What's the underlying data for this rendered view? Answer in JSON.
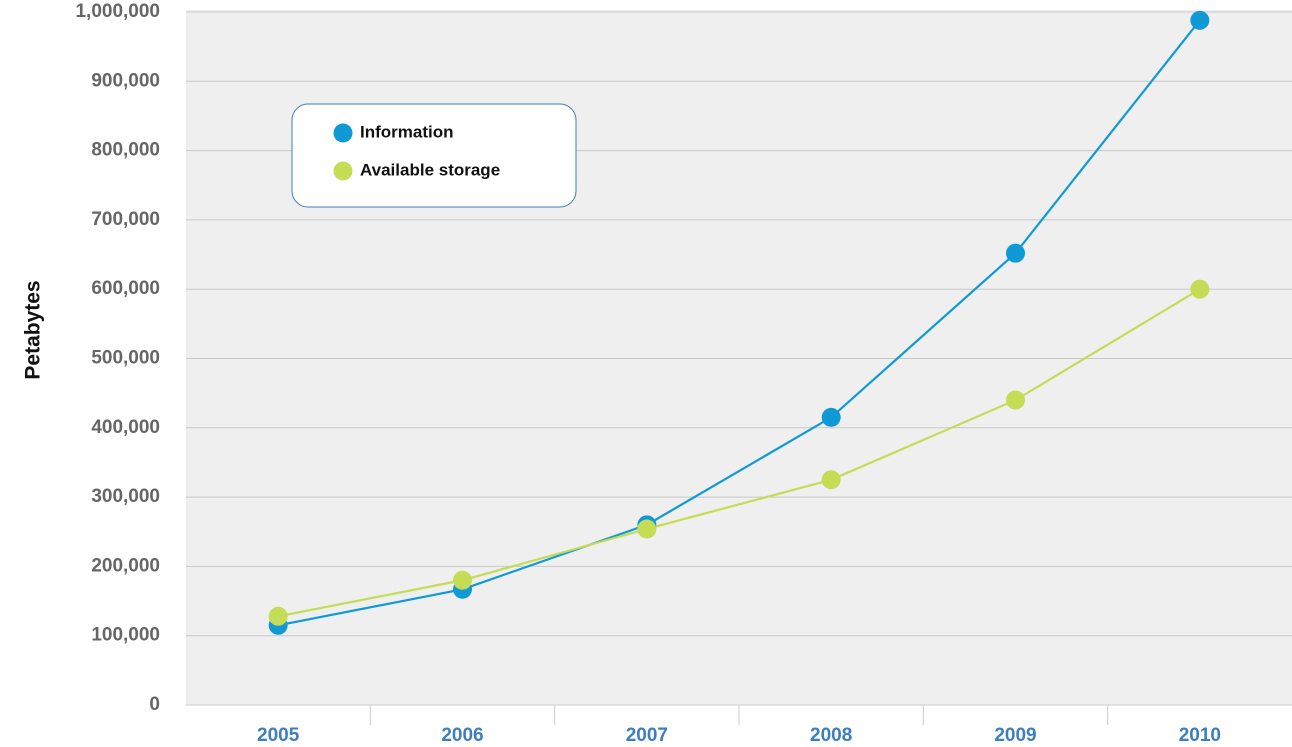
{
  "chart_data": {
    "type": "line",
    "y_label": "Petabytes",
    "categories": [
      "2005",
      "2006",
      "2007",
      "2008",
      "2009",
      "2010"
    ],
    "series": [
      {
        "name": "Information",
        "color": "#0f9ad6",
        "values": [
          115000,
          167000,
          260000,
          415000,
          652000,
          988000
        ]
      },
      {
        "name": "Available storage",
        "color": "#c5dc55",
        "values": [
          128000,
          180000,
          254000,
          325000,
          440000,
          600000
        ]
      }
    ],
    "ylim": [
      0,
      1000000
    ],
    "yticks": [
      0,
      {
        "value": 100000,
        "label": "100,000"
      },
      {
        "value": 200000,
        "label": "200,000"
      },
      {
        "value": 300000,
        "label": "300,000"
      },
      {
        "value": 400000,
        "label": "400,000"
      },
      {
        "value": 500000,
        "label": "500,000"
      },
      {
        "value": 600000,
        "label": "600,000"
      },
      {
        "value": 700000,
        "label": "700,000"
      },
      {
        "value": 800000,
        "label": "800,000"
      },
      {
        "value": 900000,
        "label": "900,000"
      },
      {
        "value": 1000000,
        "label": "1,000,000"
      }
    ],
    "grid": true,
    "legend": "upper left"
  }
}
